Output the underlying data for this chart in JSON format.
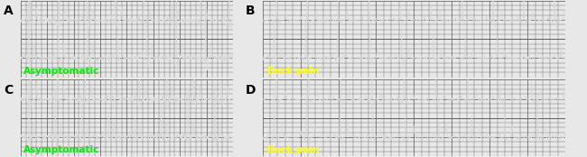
{
  "panels": [
    {
      "label": "A",
      "text": "Asymptomatic",
      "text_color": "#00ee00",
      "row": 0,
      "col": 0
    },
    {
      "label": "B",
      "text": "Back pain",
      "text_color": "#ffff00",
      "row": 0,
      "col": 1
    },
    {
      "label": "C",
      "text": "Asymptomatic",
      "text_color": "#00ee00",
      "row": 1,
      "col": 0
    },
    {
      "label": "D",
      "text": "Back pain",
      "text_color": "#ffff00",
      "row": 1,
      "col": 1
    }
  ],
  "ecg_bg_color": "#3a3a3a",
  "grid_color_minor": "#4d4d4d",
  "grid_color_major": "#585858",
  "ecg_line_color": "#d8d8d8",
  "outer_bg": "#e8e8e8",
  "panel_border_color": "#222222",
  "label_fontsize": 10,
  "text_fontsize": 7.5,
  "fig_width": 6.5,
  "fig_height": 1.74
}
